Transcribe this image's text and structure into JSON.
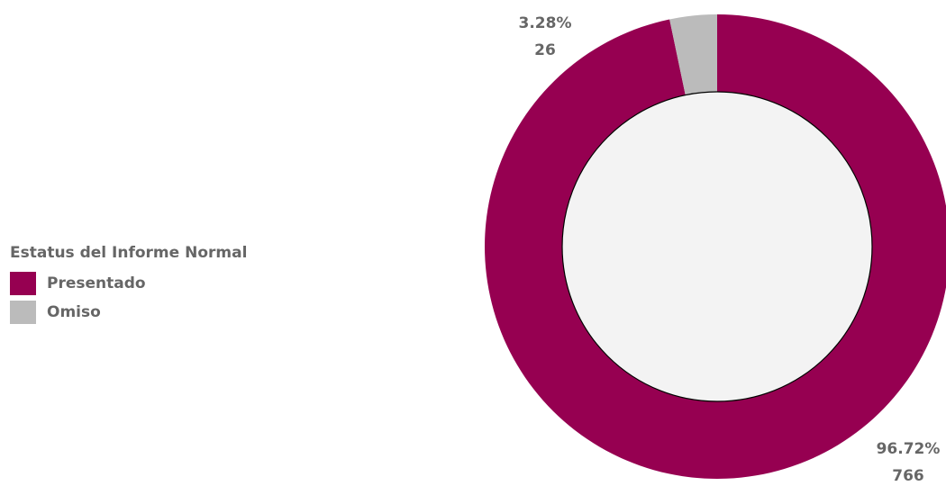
{
  "chart_data": {
    "type": "pie",
    "donut": true,
    "legend_title": "Estatus del Informe Normal",
    "legend_placement": "left",
    "series": [
      {
        "name": "Presentado",
        "value": 766,
        "percent_label": "96.72%",
        "count_label": "766",
        "color": "#960051"
      },
      {
        "name": "Omiso",
        "value": 26,
        "percent_label": "3.28%",
        "count_label": "26",
        "color": "#bbbbbb"
      }
    ],
    "inner_color": "#f3f3f3"
  }
}
